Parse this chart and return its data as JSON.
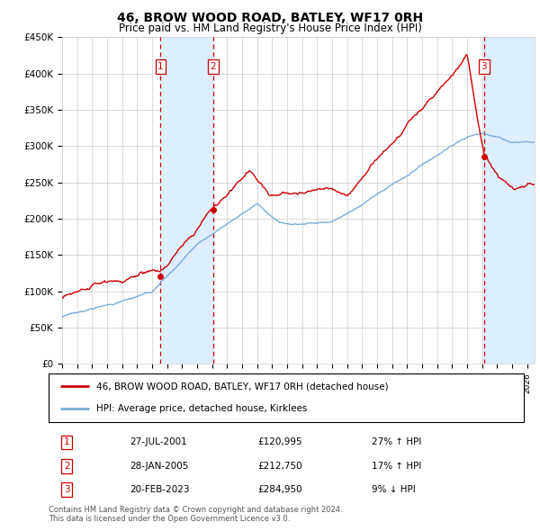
{
  "title": "46, BROW WOOD ROAD, BATLEY, WF17 0RH",
  "subtitle": "Price paid vs. HM Land Registry's House Price Index (HPI)",
  "ylabel_ticks": [
    "£0",
    "£50K",
    "£100K",
    "£150K",
    "£200K",
    "£250K",
    "£300K",
    "£350K",
    "£400K",
    "£450K"
  ],
  "ytick_values": [
    0,
    50000,
    100000,
    150000,
    200000,
    250000,
    300000,
    350000,
    400000,
    450000
  ],
  "ylim": [
    0,
    450000
  ],
  "xlim_start": 1995.0,
  "xlim_end": 2026.5,
  "sale1": {
    "date_num": 2001.57,
    "price": 120995,
    "label": "1"
  },
  "sale2": {
    "date_num": 2005.08,
    "price": 212750,
    "label": "2"
  },
  "sale3": {
    "date_num": 2023.13,
    "price": 284950,
    "label": "3"
  },
  "shade1_start": 2001.57,
  "shade1_end": 2005.08,
  "shade2_start": 2023.13,
  "shade2_end": 2026.5,
  "transactions": [
    {
      "label": "1",
      "date": "27-JUL-2001",
      "price": "£120,995",
      "hpi": "27% ↑ HPI"
    },
    {
      "label": "2",
      "date": "28-JAN-2005",
      "price": "£212,750",
      "hpi": "17% ↑ HPI"
    },
    {
      "label": "3",
      "date": "20-FEB-2023",
      "price": "£284,950",
      "hpi": "9% ↓ HPI"
    }
  ],
  "legend_line1": "46, BROW WOOD ROAD, BATLEY, WF17 0RH (detached house)",
  "legend_line2": "HPI: Average price, detached house, Kirklees",
  "footer": "Contains HM Land Registry data © Crown copyright and database right 2024.\nThis data is licensed under the Open Government Licence v3.0.",
  "red_color": "#cc0000",
  "blue_color": "#7aaddb",
  "shade_color": "#ddeeff",
  "background_color": "#ffffff",
  "grid_color": "#cccccc"
}
